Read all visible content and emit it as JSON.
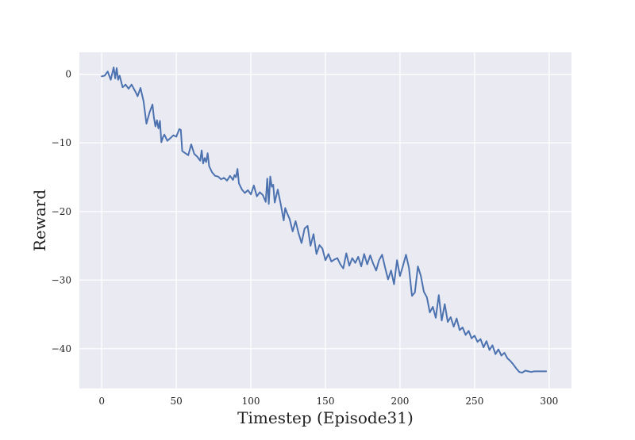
{
  "chart_data": {
    "type": "line",
    "title": "",
    "xlabel": "Timestep (Episode31)",
    "ylabel": "Reward",
    "xlim": [
      -15,
      315
    ],
    "ylim": [
      -45.8,
      3.2
    ],
    "xticks": [
      0,
      50,
      100,
      150,
      200,
      250,
      300
    ],
    "yticks": [
      0,
      -10,
      -20,
      -30,
      -40
    ],
    "xtick_labels": [
      "0",
      "50",
      "100",
      "150",
      "200",
      "250",
      "300"
    ],
    "ytick_labels": [
      "0",
      "−10",
      "−20",
      "−30",
      "−40"
    ],
    "grid": true,
    "legend": "none",
    "colors": {
      "background": "#eaeaf2",
      "grid": "#ffffff",
      "line": "#4c72b0"
    },
    "series": [
      {
        "x": [
          0,
          2,
          4,
          6,
          8,
          9,
          10,
          11,
          12,
          14,
          16,
          18,
          20,
          22,
          23,
          24,
          26,
          28,
          30,
          32,
          33,
          34,
          35,
          36,
          37,
          38,
          39,
          40,
          41,
          42,
          44,
          46,
          48,
          50,
          52,
          53,
          54,
          56,
          58,
          60,
          62,
          64,
          66,
          67,
          68,
          69,
          70,
          71,
          72,
          74,
          76,
          78,
          80,
          82,
          84,
          86,
          88,
          89,
          90,
          91,
          92,
          94,
          96,
          98,
          100,
          102,
          104,
          106,
          108,
          110,
          111,
          112,
          113,
          114,
          115,
          116,
          118,
          120,
          122,
          123,
          124,
          126,
          128,
          130,
          132,
          134,
          136,
          138,
          140,
          142,
          144,
          146,
          148,
          150,
          152,
          154,
          156,
          158,
          160,
          162,
          164,
          166,
          168,
          170,
          172,
          174,
          176,
          178,
          180,
          182,
          184,
          186,
          188,
          190,
          192,
          194,
          196,
          198,
          200,
          202,
          204,
          206,
          208,
          210,
          212,
          214,
          216,
          218,
          220,
          222,
          224,
          226,
          228,
          230,
          232,
          234,
          236,
          238,
          240,
          242,
          244,
          246,
          248,
          250,
          252,
          254,
          256,
          258,
          260,
          262,
          264,
          266,
          268,
          270,
          272,
          274,
          276,
          278,
          280,
          282,
          284,
          286,
          288,
          290,
          292,
          294,
          296,
          298
        ],
        "y": [
          -0.3,
          -0.2,
          0.4,
          -0.8,
          1.0,
          -0.6,
          0.9,
          -0.8,
          -0.2,
          -1.9,
          -1.5,
          -2.1,
          -1.5,
          -2.3,
          -2.7,
          -3.2,
          -2.0,
          -3.9,
          -7.2,
          -5.6,
          -5.0,
          -4.4,
          -6.3,
          -7.6,
          -6.7,
          -7.9,
          -6.8,
          -9.9,
          -9.2,
          -8.8,
          -9.7,
          -9.3,
          -8.9,
          -9.1,
          -8.0,
          -8.1,
          -11.2,
          -11.5,
          -11.8,
          -10.2,
          -11.6,
          -12.0,
          -12.6,
          -11.1,
          -13.0,
          -12.2,
          -12.8,
          -11.5,
          -13.4,
          -14.3,
          -14.8,
          -14.9,
          -15.3,
          -15.1,
          -15.5,
          -14.8,
          -15.4,
          -14.7,
          -15.0,
          -13.8,
          -15.9,
          -16.8,
          -17.3,
          -16.9,
          -17.5,
          -16.2,
          -17.8,
          -17.2,
          -17.6,
          -18.6,
          -15.2,
          -18.9,
          -14.9,
          -16.4,
          -16.1,
          -18.7,
          -16.8,
          -18.9,
          -21.3,
          -19.5,
          -20.1,
          -21.1,
          -22.9,
          -21.4,
          -23.2,
          -24.6,
          -22.5,
          -22.1,
          -25.0,
          -23.3,
          -26.2,
          -24.9,
          -25.4,
          -27.1,
          -26.2,
          -27.3,
          -27.0,
          -26.8,
          -27.7,
          -28.3,
          -26.1,
          -27.9,
          -26.8,
          -27.5,
          -26.6,
          -28.0,
          -26.2,
          -27.7,
          -26.4,
          -27.6,
          -28.6,
          -27.1,
          -26.3,
          -28.2,
          -29.9,
          -28.6,
          -30.6,
          -27.1,
          -29.4,
          -27.9,
          -26.3,
          -28.2,
          -32.3,
          -31.8,
          -28.0,
          -29.4,
          -31.7,
          -32.5,
          -34.7,
          -33.9,
          -35.5,
          -32.2,
          -35.9,
          -33.5,
          -36.1,
          -35.4,
          -36.8,
          -35.6,
          -37.3,
          -36.9,
          -38.0,
          -37.4,
          -38.5,
          -38.1,
          -39.0,
          -38.6,
          -39.8,
          -38.9,
          -40.2,
          -39.5,
          -40.8,
          -40.1,
          -41.0,
          -40.6,
          -41.4,
          -41.8,
          -42.3,
          -42.9,
          -43.4,
          -43.5,
          -43.2,
          -43.3,
          -43.4,
          -43.3,
          -43.3,
          -43.3,
          -43.3,
          -43.3
        ]
      }
    ]
  }
}
